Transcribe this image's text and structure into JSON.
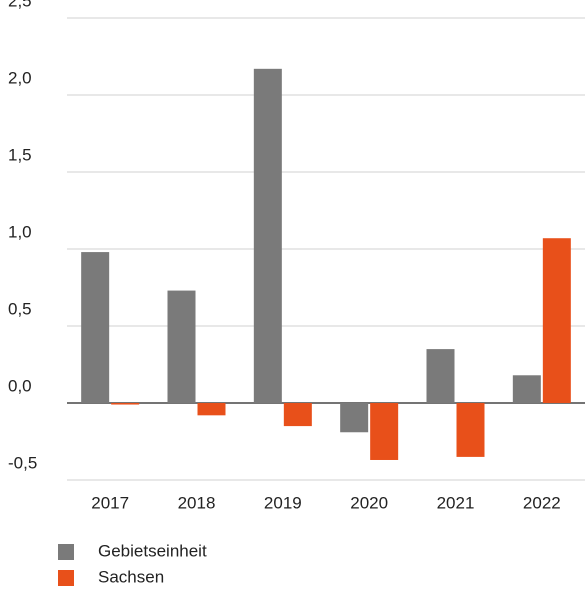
{
  "chart_data": {
    "type": "bar",
    "categories": [
      "2017",
      "2018",
      "2019",
      "2020",
      "2021",
      "2022"
    ],
    "series": [
      {
        "name": "Gebietseinheit",
        "color": "#7a7a7a",
        "values": [
          0.98,
          0.73,
          2.17,
          -0.19,
          0.35,
          0.18
        ]
      },
      {
        "name": "Sachsen",
        "color": "#e8501a",
        "values": [
          -0.01,
          -0.08,
          -0.15,
          -0.37,
          -0.35,
          1.07
        ]
      }
    ],
    "ylim": [
      -0.5,
      2.5
    ],
    "yticks": [
      {
        "value": -0.5,
        "label": "-0,5"
      },
      {
        "value": 0,
        "label": "0,0"
      },
      {
        "value": 0.5,
        "label": "0,5"
      },
      {
        "value": 1,
        "label": "1,0"
      },
      {
        "value": 1.5,
        "label": "1,5"
      },
      {
        "value": 2,
        "label": "2,0"
      },
      {
        "value": 2.5,
        "label": "2,5"
      }
    ],
    "grid": true
  }
}
